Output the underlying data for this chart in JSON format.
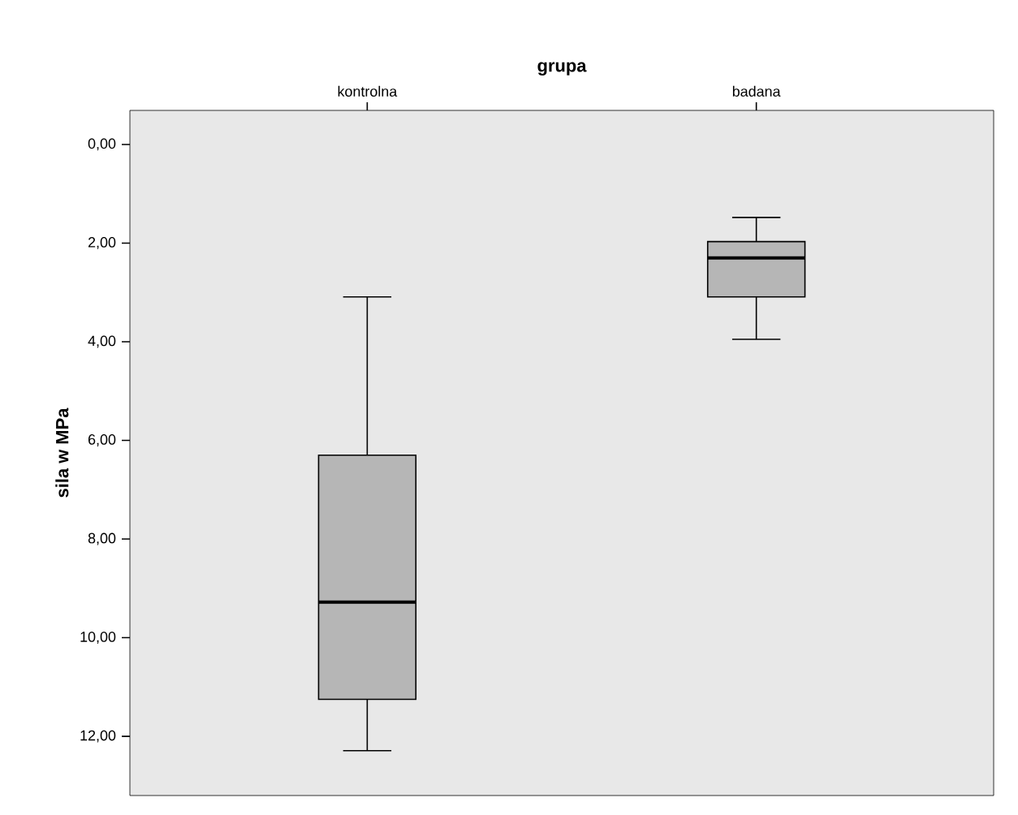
{
  "chart_data": {
    "type": "box",
    "xlabel": "grupa",
    "ylabel": "sila w MPa",
    "categories": [
      "kontrolna",
      "badana"
    ],
    "boxes": [
      {
        "low": 3.09,
        "q1": 6.3,
        "median": 9.28,
        "q3": 11.25,
        "high": 12.29
      },
      {
        "low": 1.48,
        "q1": 1.97,
        "median": 2.3,
        "q3": 3.09,
        "high": 3.95
      }
    ],
    "color": "#b6b6b6",
    "ylim": [
      13.2,
      -0.69
    ],
    "yticks": [
      {
        "value": 0,
        "label": "0,00"
      },
      {
        "value": 2,
        "label": "2,00"
      },
      {
        "value": 4,
        "label": "4,00"
      },
      {
        "value": 6,
        "label": "6,00"
      },
      {
        "value": 8,
        "label": "8,00"
      },
      {
        "value": 10,
        "label": "10,00"
      },
      {
        "value": 12,
        "label": "12,00"
      }
    ],
    "grid": false
  }
}
